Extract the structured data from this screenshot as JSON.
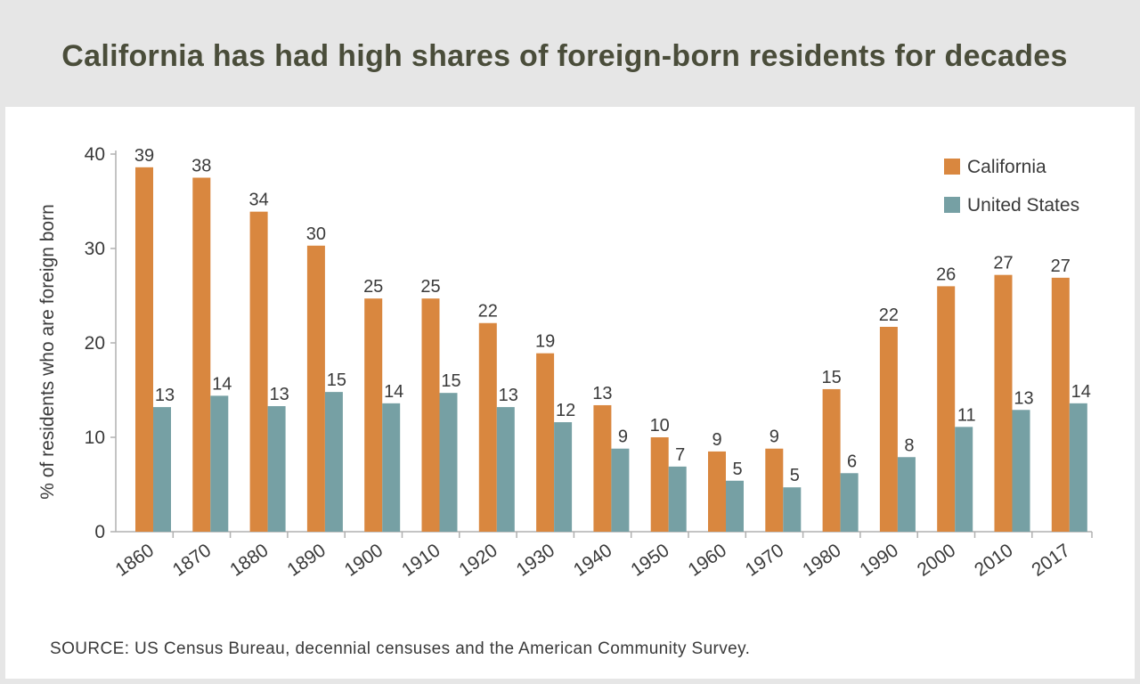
{
  "title": "California has had high shares of foreign-born residents for decades",
  "source": "SOURCE: US Census Bureau, decennial censuses and the American Community Survey.",
  "colors": {
    "california": "#d9873f",
    "united_states": "#76a0a4",
    "axis": "#b0b0b0",
    "text": "#3a3a3a"
  },
  "chart_data": {
    "type": "bar",
    "title": "",
    "xlabel": "",
    "ylabel": "% of residents who are foreign born",
    "ylim": [
      0,
      40
    ],
    "yticks": [
      0,
      10,
      20,
      30,
      40
    ],
    "grid": false,
    "legend_position": "top-right",
    "categories": [
      "1860",
      "1870",
      "1880",
      "1890",
      "1900",
      "1910",
      "1920",
      "1930",
      "1940",
      "1950",
      "1960",
      "1970",
      "1980",
      "1990",
      "2000",
      "2010",
      "2017"
    ],
    "series": [
      {
        "name": "California",
        "values": [
          38.6,
          37.5,
          33.9,
          30.3,
          24.7,
          24.7,
          22.1,
          18.9,
          13.4,
          10.0,
          8.5,
          8.8,
          15.1,
          21.7,
          26.0,
          27.2,
          26.9
        ],
        "labels": [
          "39",
          "38",
          "34",
          "30",
          "25",
          "25",
          "22",
          "19",
          "13",
          "10",
          "9",
          "9",
          "15",
          "22",
          "26",
          "27",
          "27"
        ]
      },
      {
        "name": "United States",
        "values": [
          13.2,
          14.4,
          13.3,
          14.8,
          13.6,
          14.7,
          13.2,
          11.6,
          8.8,
          6.9,
          5.4,
          4.7,
          6.2,
          7.9,
          11.1,
          12.9,
          13.6
        ],
        "labels": [
          "13",
          "14",
          "13",
          "15",
          "14",
          "15",
          "13",
          "12",
          "9",
          "7",
          "5",
          "5",
          "6",
          "8",
          "11",
          "13",
          "14"
        ]
      }
    ]
  }
}
